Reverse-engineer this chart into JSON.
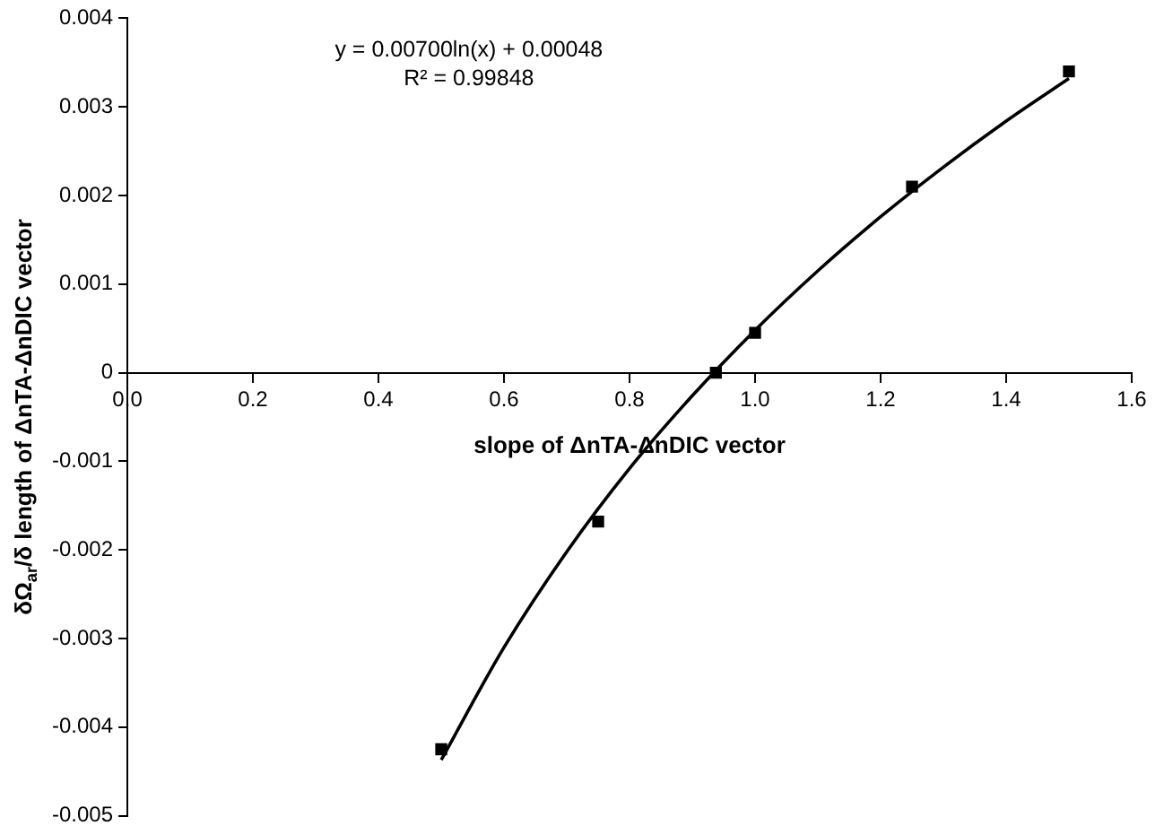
{
  "chart_data": {
    "type": "scatter",
    "xlabel": "slope of ΔnTA-ΔnDIC vector",
    "ylabel": "δΩ$_{ar}$/δ length of ΔnTA-ΔnDIC vector",
    "annotations": [
      "y = 0.00700ln(x) + 0.00048",
      "R² = 0.99848"
    ],
    "series": [
      {
        "type": "scatter",
        "color": "#000000",
        "marker": "square",
        "x": [
          0.5,
          0.75,
          0.9375,
          1.0,
          1.25,
          1.5
        ],
        "values": [
          -0.00425,
          -0.00168,
          0,
          0.00045,
          0.0021,
          0.0034
        ]
      },
      {
        "type": "line",
        "color": "#000000",
        "marker": "none",
        "line_style": "solid",
        "x": [
          0.5,
          0.6,
          0.7,
          0.8,
          0.9,
          1.0,
          1.1,
          1.2,
          1.3,
          1.4,
          1.5
        ],
        "values": [
          -0.00437,
          -0.0031,
          -0.00202,
          -0.00108,
          -0.00026,
          0.00048,
          0.00115,
          0.00176,
          0.00232,
          0.00284,
          0.00332
        ]
      }
    ],
    "xlim": [
      0,
      1.6
    ],
    "xticks": [
      {
        "value": 0,
        "label": "0.0"
      },
      0.2,
      0.4,
      0.6,
      0.8,
      {
        "value": 1,
        "label": "1.0"
      },
      1.2,
      1.4,
      1.6
    ],
    "ylim": [
      -0.005,
      0.004
    ],
    "yticks": [
      -0.005,
      -0.004,
      -0.003,
      -0.002,
      -0.001,
      0,
      0.001,
      0.002,
      0.003,
      0.004
    ],
    "grid": false,
    "legend": false
  }
}
